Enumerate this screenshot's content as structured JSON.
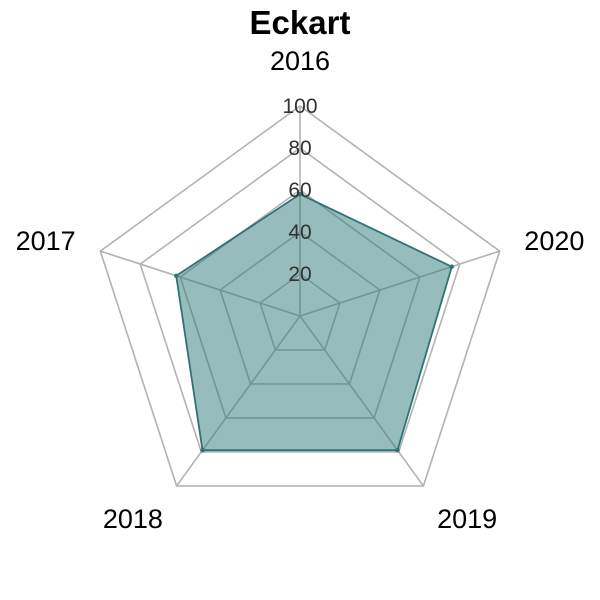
{
  "chart_data": {
    "type": "radar",
    "title": "Eckart",
    "categories": [
      "2016",
      "2017",
      "2018",
      "2019",
      "2020"
    ],
    "ticks": [
      "20",
      "40",
      "60",
      "80",
      "100"
    ],
    "rlim": [
      0,
      100
    ],
    "series": [
      {
        "values": [
          58,
          62,
          79,
          79,
          76
        ]
      }
    ],
    "grid": true,
    "legend": "none",
    "colors": {
      "fill": "#2e7a78",
      "stroke": "#2f7473",
      "grid": "#b3b3b3",
      "inner_grid": "#8a9c9b"
    }
  }
}
